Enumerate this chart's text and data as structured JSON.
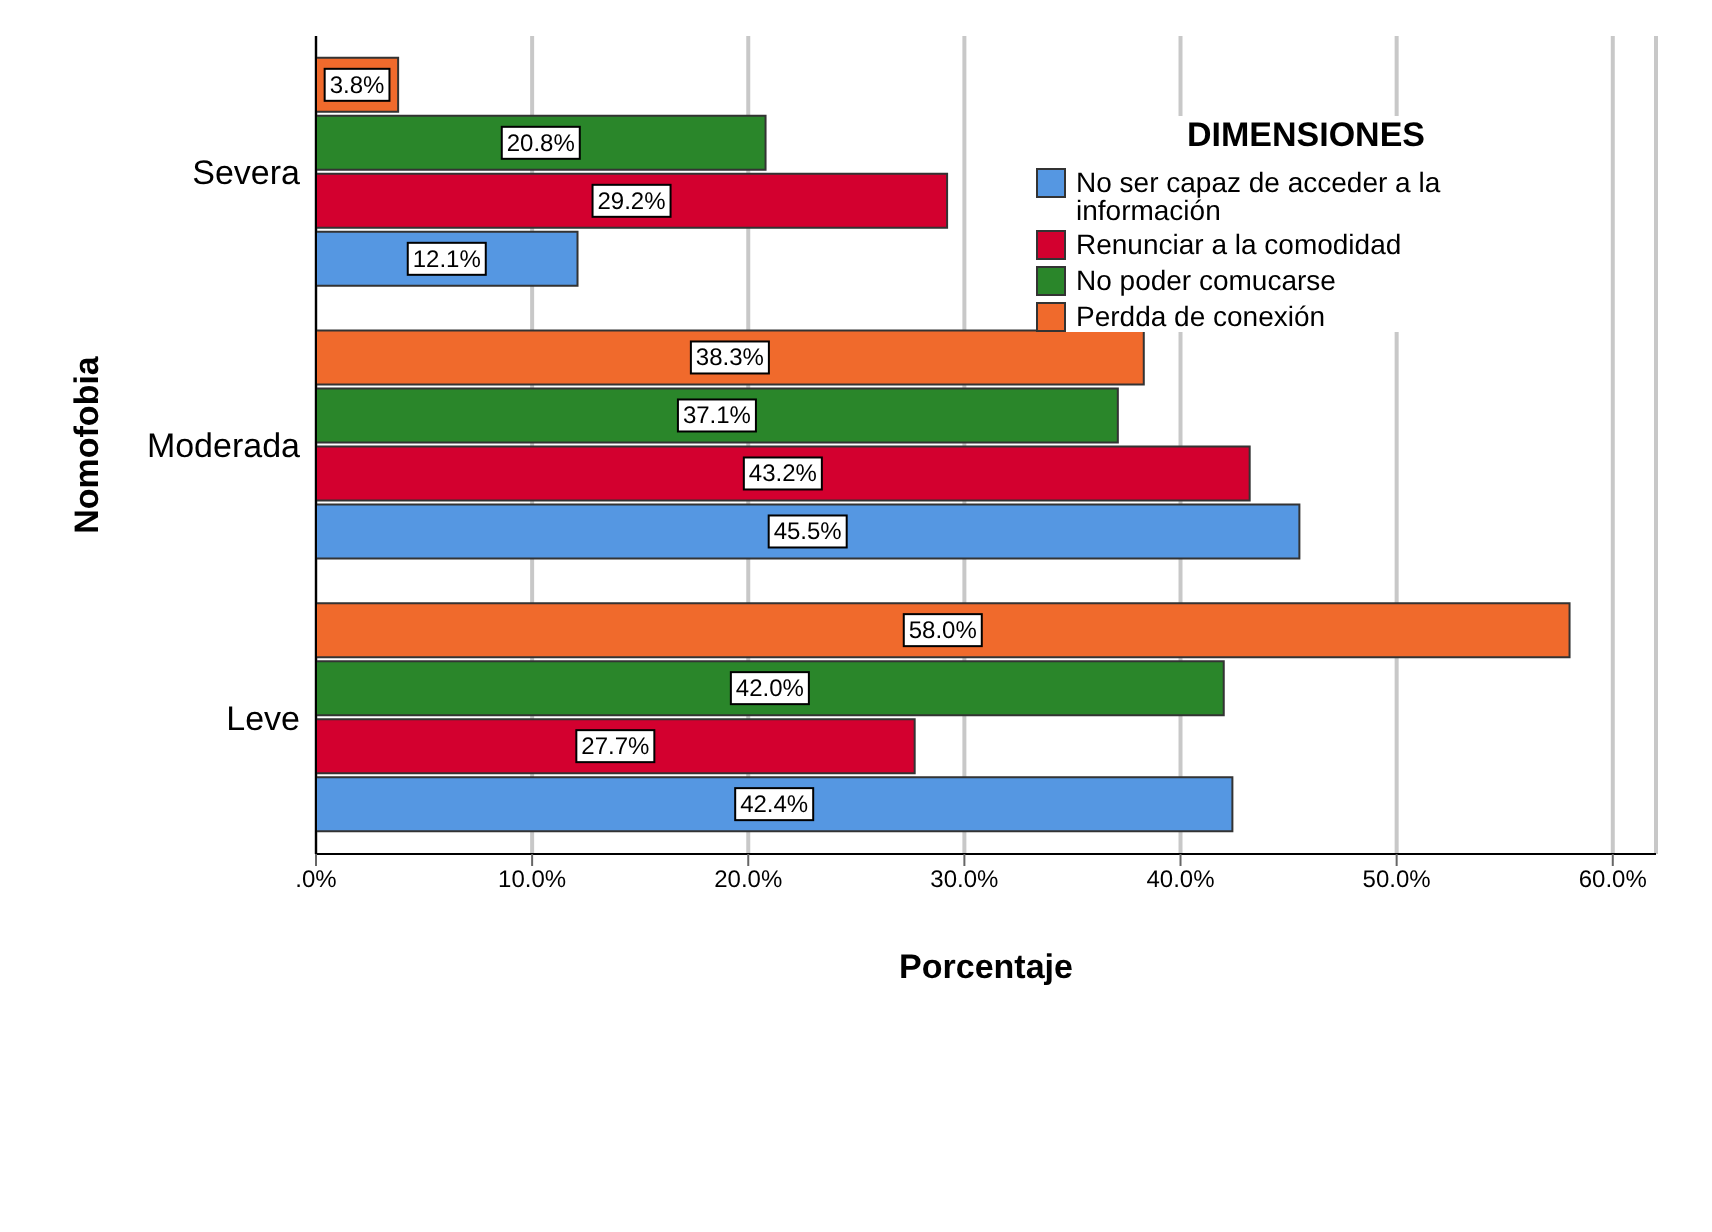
{
  "chart_data": {
    "type": "bar",
    "orientation": "horizontal",
    "xlabel": "Porcentaje",
    "ylabel": "Nomofobia",
    "legend_title": "DIMENSIONES",
    "categories": [
      "Severa",
      "Moderada",
      "Leve"
    ],
    "series": [
      {
        "name": "No ser capaz de acceder a la información",
        "color": "#5597e2",
        "values": [
          12.1,
          45.5,
          42.4
        ],
        "value_labels": [
          "12.1%",
          "45.5%",
          "42.4%"
        ]
      },
      {
        "name": "Renunciar a la comodidad",
        "color": "#d3002f",
        "values": [
          29.2,
          43.2,
          27.7
        ],
        "value_labels": [
          "29.2%",
          "43.2%",
          "27.7%"
        ]
      },
      {
        "name": "No poder comucarse",
        "color": "#2a862a",
        "values": [
          20.8,
          37.1,
          42.0
        ],
        "value_labels": [
          "20.8%",
          "37.1%",
          "42.0%"
        ]
      },
      {
        "name": "Perdda de conexión",
        "color": "#f06a2c",
        "values": [
          3.8,
          38.3,
          58.0
        ],
        "value_labels": [
          "3.8%",
          "38.3%",
          "58.0%"
        ]
      }
    ],
    "xlim": [
      0,
      62
    ],
    "xticks": [
      {
        "value": 0,
        "label": ".0%"
      },
      {
        "value": 10,
        "label": "10.0%"
      },
      {
        "value": 20,
        "label": "20.0%"
      },
      {
        "value": 30,
        "label": "30.0%"
      },
      {
        "value": 40,
        "label": "40.0%"
      },
      {
        "value": 50,
        "label": "50.0%"
      },
      {
        "value": 60,
        "label": "60.0%"
      }
    ],
    "grid": "x",
    "legend": "top right"
  }
}
